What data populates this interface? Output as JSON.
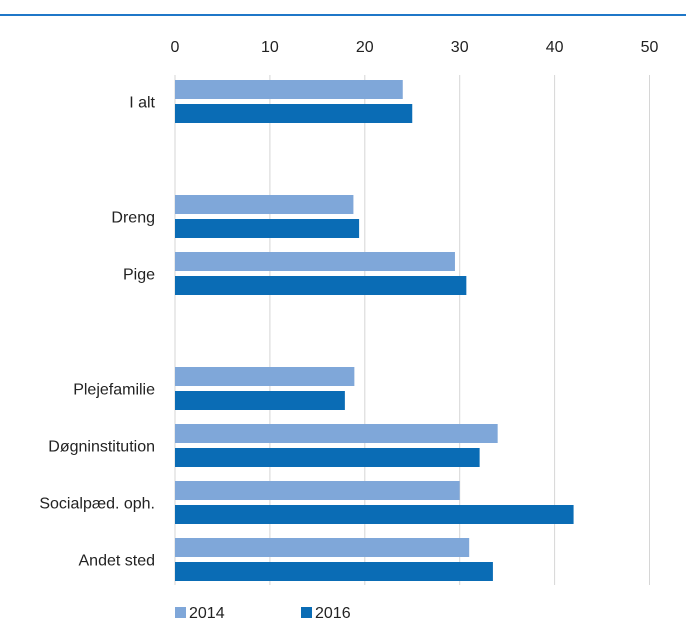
{
  "colors": {
    "series_2014": "#7fa7d9",
    "series_2016": "#0a6cb5",
    "grid": "#d6d6d6",
    "top_rule": "#1f77c8"
  },
  "chart_data": {
    "type": "bar",
    "orientation": "horizontal",
    "xlim": [
      0,
      50
    ],
    "xticks": [
      0,
      10,
      20,
      30,
      40,
      50
    ],
    "xaxis_position": "top",
    "grid": true,
    "legend_position": "bottom-left",
    "categories": [
      "I alt",
      "Dreng",
      "Pige",
      "Plejefamilie",
      "Døgninstitution",
      "Socialpæd. oph.",
      "Andet sted"
    ],
    "series": [
      {
        "name": "2014",
        "values": [
          24,
          18.8,
          29.5,
          18.9,
          34,
          30,
          31
        ]
      },
      {
        "name": "2016",
        "values": [
          25,
          19.4,
          30.7,
          17.9,
          32.1,
          42,
          33.5
        ]
      }
    ]
  }
}
